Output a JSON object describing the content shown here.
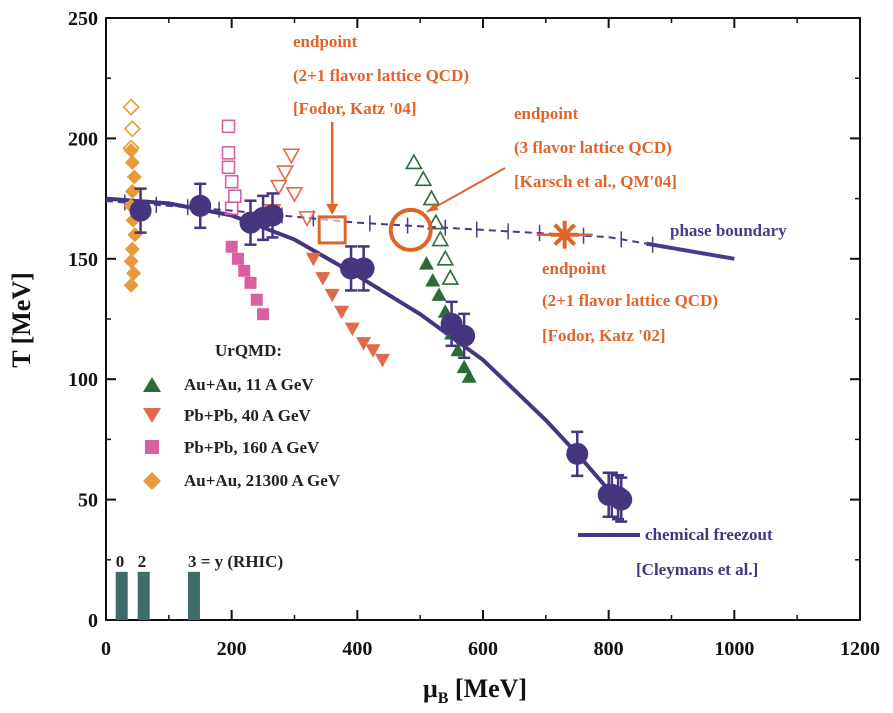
{
  "chart_data": {
    "type": "scatter",
    "xlabel_main": "μ",
    "xlabel_sub": "B",
    "xlabel_unit": " [MeV]",
    "ylabel": "T [MeV]",
    "xlim": [
      0,
      1200
    ],
    "ylim": [
      0,
      250
    ],
    "xticks": [
      "0",
      "200",
      "400",
      "600",
      "800",
      "1000",
      "1200"
    ],
    "yticks": [
      "0",
      "50",
      "100",
      "150",
      "200",
      "250"
    ],
    "legend_title": "UrQMD:",
    "colors": {
      "axis": "#111111",
      "curve": "#4a3a8c",
      "freezeout": "#46357f",
      "annotation": "#e0642a",
      "auau11": "#2e6b3a",
      "pbpb40": "#e06a4a",
      "pbpb160": "#d95fa0",
      "auau21300": "#e89a3a",
      "rhic": "#3f6b6b"
    },
    "series": [
      {
        "name": "Au+Au, 11 A GeV",
        "marker": "triangle-up",
        "color": "#2e6b3a",
        "filled_points": [
          [
            510,
            148
          ],
          [
            520,
            141
          ],
          [
            530,
            135
          ],
          [
            540,
            128
          ],
          [
            550,
            119
          ],
          [
            560,
            112
          ],
          [
            570,
            105
          ],
          [
            578,
            101
          ]
        ],
        "open_points": [
          [
            490,
            190
          ],
          [
            505,
            183
          ],
          [
            518,
            175
          ],
          [
            525,
            165
          ],
          [
            532,
            158
          ],
          [
            540,
            150
          ],
          [
            548,
            142
          ]
        ]
      },
      {
        "name": "Pb+Pb, 40 A GeV",
        "marker": "triangle-down",
        "color": "#e06a4a",
        "filled_points": [
          [
            330,
            150
          ],
          [
            345,
            142
          ],
          [
            360,
            135
          ],
          [
            375,
            128
          ],
          [
            392,
            121
          ],
          [
            410,
            115
          ],
          [
            425,
            112
          ],
          [
            440,
            108
          ]
        ],
        "open_points": [
          [
            265,
            170
          ],
          [
            275,
            180
          ],
          [
            285,
            186
          ],
          [
            295,
            193
          ],
          [
            300,
            177
          ],
          [
            320,
            167
          ]
        ]
      },
      {
        "name": "Pb+Pb, 160 A GeV",
        "marker": "square",
        "color": "#d95fa0",
        "filled_points": [
          [
            200,
            155
          ],
          [
            210,
            150
          ],
          [
            220,
            145
          ],
          [
            230,
            140
          ],
          [
            240,
            133
          ],
          [
            250,
            127
          ]
        ],
        "open_points": [
          [
            195,
            205
          ],
          [
            195,
            194
          ],
          [
            195,
            188
          ],
          [
            200,
            182
          ],
          [
            205,
            176
          ],
          [
            200,
            171
          ]
        ]
      },
      {
        "name": "Au+Au, 21300 A GeV",
        "marker": "diamond",
        "color": "#e89a3a",
        "filled_points": [
          [
            40,
            195
          ],
          [
            42,
            190
          ],
          [
            45,
            184
          ],
          [
            42,
            178
          ],
          [
            40,
            172
          ],
          [
            43,
            166
          ],
          [
            46,
            160
          ],
          [
            42,
            154
          ],
          [
            40,
            149
          ],
          [
            44,
            144
          ],
          [
            40,
            139
          ]
        ],
        "open_points": [
          [
            40,
            213
          ],
          [
            42,
            204
          ],
          [
            40,
            196
          ]
        ]
      }
    ],
    "freezeout_points": [
      [
        55,
        170
      ],
      [
        150,
        172
      ],
      [
        230,
        165
      ],
      [
        250,
        167
      ],
      [
        265,
        168
      ],
      [
        390,
        146
      ],
      [
        410,
        146
      ],
      [
        550,
        123
      ],
      [
        570,
        118
      ],
      [
        750,
        69
      ],
      [
        800,
        52
      ],
      [
        805,
        52
      ],
      [
        815,
        51
      ],
      [
        820,
        50
      ]
    ],
    "freezeout_curve": [
      [
        0,
        175
      ],
      [
        100,
        173
      ],
      [
        200,
        168
      ],
      [
        300,
        158
      ],
      [
        400,
        143
      ],
      [
        500,
        127
      ],
      [
        600,
        108
      ],
      [
        700,
        83
      ],
      [
        750,
        69
      ],
      [
        800,
        54
      ],
      [
        830,
        48
      ]
    ],
    "phase_boundary": [
      [
        0,
        174
      ],
      [
        200,
        170
      ],
      [
        400,
        165
      ],
      [
        600,
        162
      ],
      [
        800,
        159
      ],
      [
        1000,
        150
      ]
    ],
    "phase_boundary_error_x": [
      30,
      80,
      130,
      180,
      230,
      280,
      330,
      420,
      480,
      540,
      590,
      640,
      690,
      760,
      820,
      870
    ],
    "endpoints": [
      {
        "x": 360,
        "y": 162,
        "marker": "open-square"
      },
      {
        "x": 485,
        "y": 162,
        "marker": "open-circle"
      },
      {
        "x": 730,
        "y": 160,
        "marker": "star"
      }
    ],
    "rhic_bars": [
      {
        "x": 25,
        "value": 20,
        "label": "0"
      },
      {
        "x": 60,
        "value": 20,
        "label": "2"
      },
      {
        "x": 140,
        "value": 20,
        "label": "3 = y  (RHIC)"
      }
    ],
    "annotations": {
      "endpoint_04": [
        "endpoint",
        "(2+1 flavor lattice QCD)",
        "[Fodor, Katz '04]"
      ],
      "endpoint_karsch": [
        "endpoint",
        "(3 flavor lattice QCD)",
        "[Karsch et al., QM'04]"
      ],
      "endpoint_02": [
        "endpoint",
        "(2+1 flavor lattice QCD)",
        "[Fodor, Katz '02]"
      ],
      "phase_boundary_label": "phase boundary",
      "freezeout_label": [
        "chemical freezout",
        "[Cleymans et al.]"
      ]
    }
  }
}
